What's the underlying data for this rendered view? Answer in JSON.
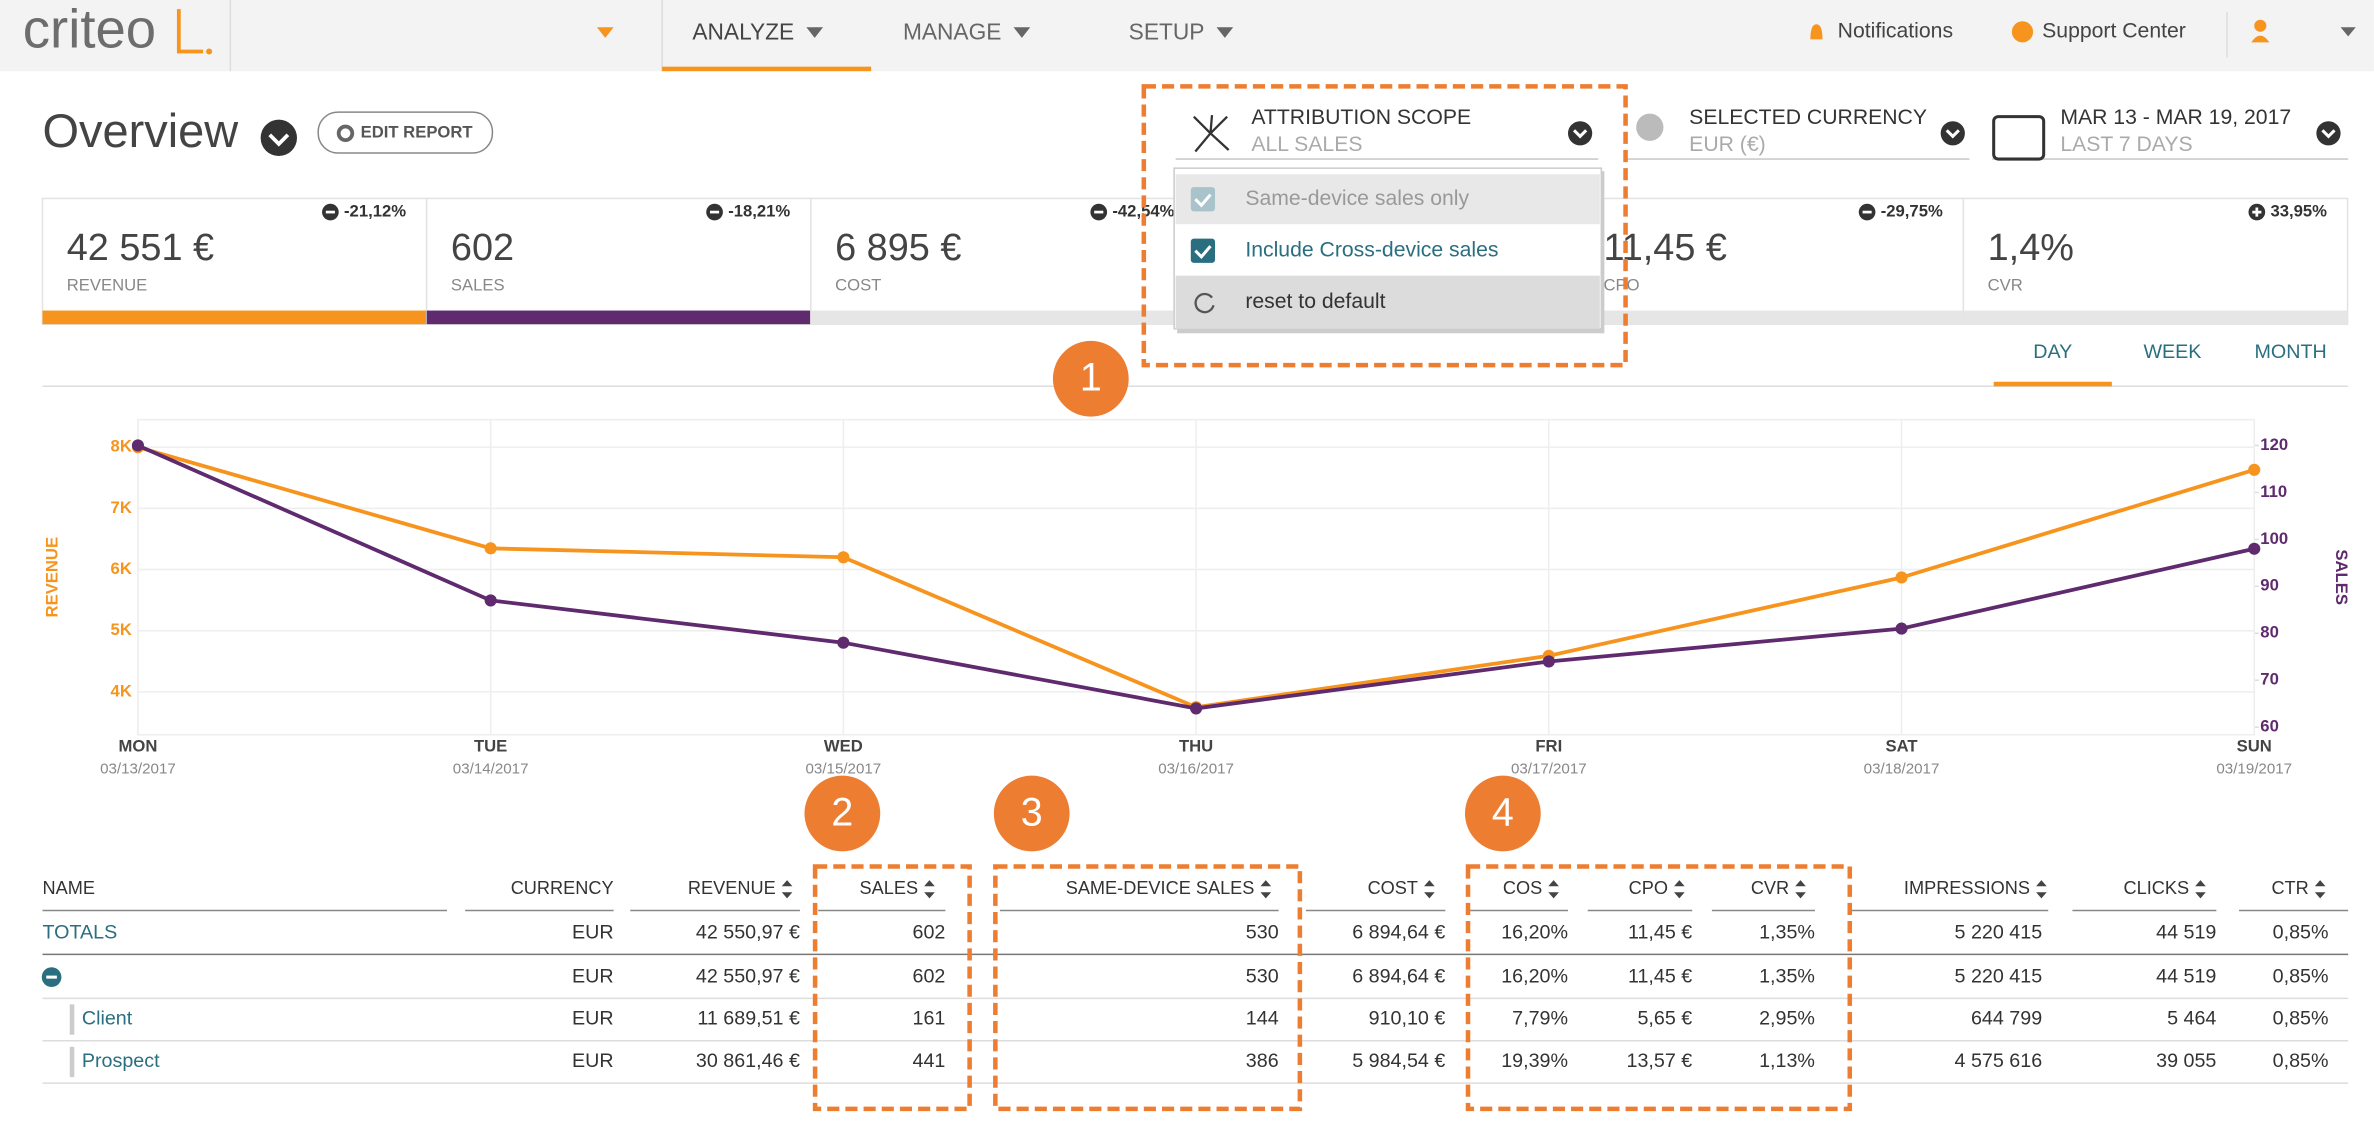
{
  "nav": {
    "logo": "criteo",
    "menu": [
      "ANALYZE",
      "MANAGE",
      "SETUP"
    ],
    "notifications": "Notifications",
    "support": "Support Center"
  },
  "header": {
    "title": "Overview",
    "edit": "EDIT REPORT"
  },
  "selectors": [
    {
      "label": "ATTRIBUTION SCOPE",
      "value": "ALL SALES"
    },
    {
      "label": "SELECTED CURRENCY",
      "value": "EUR (€)"
    },
    {
      "label": "MAR 13 - MAR 19, 2017",
      "value": "LAST 7 DAYS"
    }
  ],
  "dropdown": [
    "Same-device sales only",
    "Include Cross-device sales",
    "reset to default"
  ],
  "kpis": [
    {
      "value": "42 551 €",
      "label": "REVENUE",
      "change": "-21,12%",
      "trend": "down"
    },
    {
      "value": "602",
      "label": "SALES",
      "change": "-18,21%",
      "trend": "down"
    },
    {
      "value": "6 895 €",
      "label": "COST",
      "change": "-42,54%",
      "trend": "down"
    },
    {
      "value": "11,45 €",
      "label": "CPO",
      "change": "-29,75%",
      "trend": "down"
    },
    {
      "value": "1,4%",
      "label": "CVR",
      "change": "33,95%",
      "trend": "up"
    }
  ],
  "periods": [
    "DAY",
    "WEEK",
    "MONTH"
  ],
  "chart_data": {
    "type": "line",
    "categories": [
      "MON",
      "TUE",
      "WED",
      "THU",
      "FRI",
      "SAT",
      "SUN"
    ],
    "dates": [
      "03/13/2017",
      "03/14/2017",
      "03/15/2017",
      "03/16/2017",
      "03/17/2017",
      "03/18/2017",
      "03/19/2017"
    ],
    "ylabel": "REVENUE",
    "y2label": "SALES",
    "series": [
      {
        "name": "REVENUE",
        "color": "#f7941d",
        "values": [
          8000,
          6346,
          6200,
          3750,
          4590,
          5870,
          7630
        ]
      },
      {
        "name": "SALES",
        "color": "#5f2a6e",
        "axis": "y2",
        "values": [
          120,
          87,
          78,
          64,
          74,
          81,
          98
        ]
      }
    ],
    "ylim": [
      3300,
      8450
    ],
    "yticks": [
      {
        "value": 4000,
        "label": "4K"
      },
      {
        "value": 5000,
        "label": "5K"
      },
      {
        "value": 6000,
        "label": "6K"
      },
      {
        "value": 7000,
        "label": "7K"
      },
      {
        "value": 8000,
        "label": "8K"
      }
    ],
    "y2lim": [
      58.4,
      125.5
    ],
    "y2ticks": [
      60,
      70,
      80,
      90,
      100,
      110,
      120
    ],
    "grid": true
  },
  "table": {
    "columns": [
      "NAME",
      "CURRENCY",
      "REVENUE",
      "SALES",
      "SAME-DEVICE SALES",
      "COST",
      "COS",
      "CPO",
      "CVR",
      "IMPRESSIONS",
      "CLICKS",
      "CTR"
    ],
    "rows": [
      {
        "name": "TOTALS",
        "cells": [
          "EUR",
          "42 550,97 €",
          "602",
          "530",
          "6 894,64 €",
          "16,20%",
          "11,45 €",
          "1,35%",
          "5 220 415",
          "44 519",
          "0,85%"
        ]
      },
      {
        "cells": [
          "EUR",
          "42 550,97 €",
          "602",
          "530",
          "6 894,64 €",
          "16,20%",
          "11,45 €",
          "1,35%",
          "5 220 415",
          "44 519",
          "0,85%"
        ]
      },
      {
        "name": "Client",
        "cells": [
          "EUR",
          "11 689,51 €",
          "161",
          "144",
          "910,10 €",
          "7,79%",
          "5,65 €",
          "2,95%",
          "644 799",
          "5 464",
          "0,85%"
        ]
      },
      {
        "name": "Prospect",
        "cells": [
          "EUR",
          "30 861,46 €",
          "441",
          "386",
          "5 984,54 €",
          "19,39%",
          "13,57 €",
          "1,13%",
          "4 575 616",
          "39 055",
          "0,85%"
        ]
      }
    ]
  },
  "annotations": [
    "1",
    "2",
    "3",
    "4"
  ]
}
